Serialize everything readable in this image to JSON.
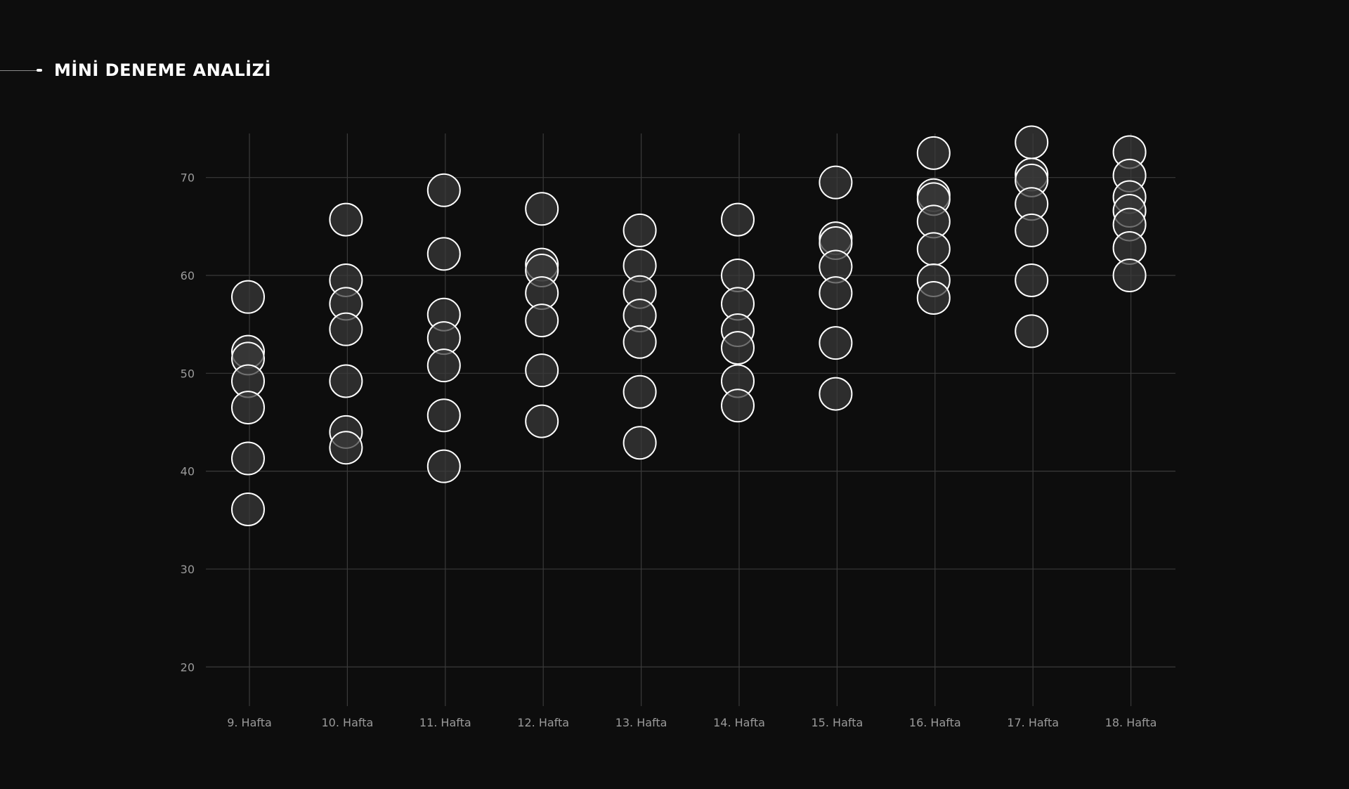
{
  "title": "MİNİ DENEME ANALİZİ",
  "colors": {
    "background": "#0d0d0d",
    "grid": "#3a3a3a",
    "tick_text": "#9a9a9a",
    "point_fill": "#3a3a3a",
    "point_stroke": "#ffffff"
  },
  "chart_data": {
    "type": "scatter",
    "title": "MİNİ DENEME ANALİZİ",
    "xlabel": "",
    "ylabel": "",
    "categories": [
      "9. Hafta",
      "10. Hafta",
      "11. Hafta",
      "12. Hafta",
      "13. Hafta",
      "14. Hafta",
      "15. Hafta",
      "16. Hafta",
      "17. Hafta",
      "18. Hafta"
    ],
    "ylim": [
      16,
      74.5
    ],
    "yticks": [
      20,
      30,
      40,
      50,
      60,
      70
    ],
    "grid": true,
    "series": [
      {
        "category": "9. Hafta",
        "values": [
          57.8,
          52.2,
          51.5,
          49.2,
          46.5,
          41.3,
          36.1
        ]
      },
      {
        "category": "10. Hafta",
        "values": [
          65.7,
          59.5,
          57.1,
          54.5,
          49.2,
          44.0,
          42.4
        ]
      },
      {
        "category": "11. Hafta",
        "values": [
          68.7,
          62.2,
          56.0,
          53.6,
          50.8,
          45.7,
          40.5
        ]
      },
      {
        "category": "12. Hafta",
        "values": [
          66.8,
          61.1,
          60.5,
          58.2,
          55.4,
          50.3,
          45.1
        ]
      },
      {
        "category": "13. Hafta",
        "values": [
          64.6,
          61.0,
          58.3,
          55.9,
          53.2,
          48.1,
          42.9
        ]
      },
      {
        "category": "14. Hafta",
        "values": [
          65.7,
          60.0,
          57.1,
          54.4,
          52.6,
          49.2,
          46.7
        ]
      },
      {
        "category": "15. Hafta",
        "values": [
          69.5,
          63.8,
          63.3,
          60.9,
          58.2,
          53.1,
          47.9
        ]
      },
      {
        "category": "16. Hafta",
        "values": [
          72.5,
          68.2,
          67.8,
          65.5,
          62.7,
          59.5,
          57.7
        ]
      },
      {
        "category": "17. Hafta",
        "values": [
          73.6,
          70.3,
          69.7,
          67.3,
          64.6,
          59.5,
          54.3
        ]
      },
      {
        "category": "18. Hafta",
        "values": [
          72.6,
          70.2,
          68.0,
          66.6,
          65.2,
          62.8,
          60.0
        ]
      }
    ]
  }
}
